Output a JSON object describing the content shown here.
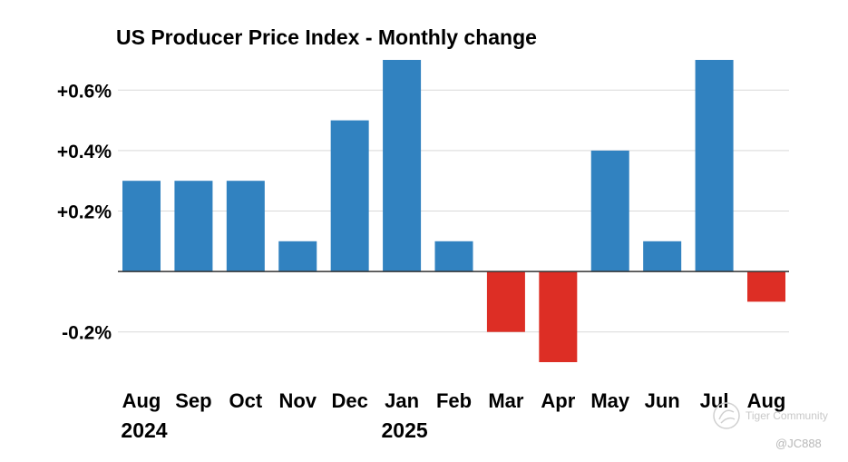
{
  "chart_data": {
    "type": "bar",
    "title": "US Producer Price Index - Monthly change",
    "xlabel": "",
    "ylabel": "",
    "categories": [
      "Aug",
      "Sep",
      "Oct",
      "Nov",
      "Dec",
      "Jan",
      "Feb",
      "Mar",
      "Apr",
      "May",
      "Jun",
      "Jul",
      "Aug"
    ],
    "year_labels": [
      {
        "category_index": 0,
        "label": "2024"
      },
      {
        "category_index": 5,
        "label": "2025"
      }
    ],
    "values": [
      0.3,
      0.3,
      0.3,
      0.1,
      0.5,
      0.7,
      0.1,
      -0.2,
      -0.3,
      0.4,
      0.1,
      0.7,
      -0.1
    ],
    "yticks": [
      {
        "value": 0.6,
        "label": "+0.6%"
      },
      {
        "value": 0.4,
        "label": "+0.4%"
      },
      {
        "value": 0.2,
        "label": "+0.2%"
      },
      {
        "value": -0.2,
        "label": "-0.2%"
      }
    ],
    "ylim": [
      -0.3,
      0.7
    ],
    "grid": true,
    "colors": {
      "positive": "#3182c0",
      "negative": "#dd2e25",
      "grid": "#d9d9d9",
      "zero_line": "#333333"
    }
  },
  "watermark": {
    "brand": "Tiger Community",
    "handle": "@JC888"
  }
}
